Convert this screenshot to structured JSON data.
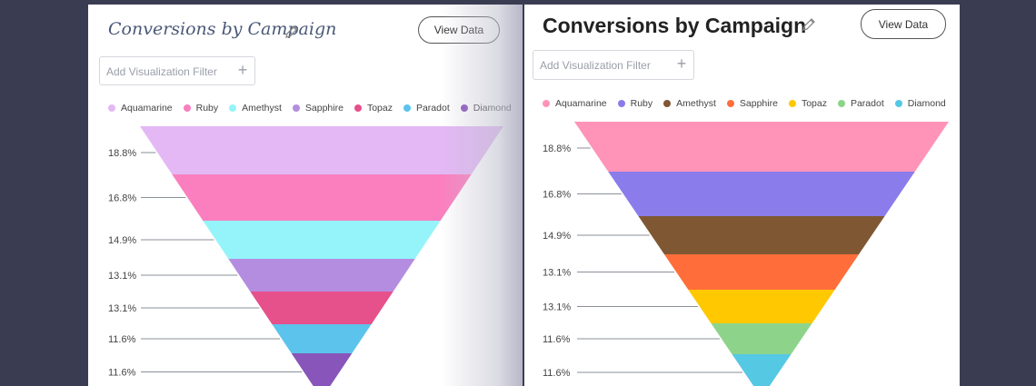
{
  "panels": [
    {
      "title": "Conversions by Campaign",
      "view_button": "View Data",
      "filter_placeholder": "Add Visualization Filter",
      "filter_add_icon": "plus-icon",
      "edit_icon": "pencil-icon",
      "legend": [
        {
          "name": "Aquamarine",
          "color": "#e4b8f5"
        },
        {
          "name": "Ruby",
          "color": "#fb7fbf"
        },
        {
          "name": "Amethyst",
          "color": "#95f4f9"
        },
        {
          "name": "Sapphire",
          "color": "#b48de0"
        },
        {
          "name": "Topaz",
          "color": "#e6508b"
        },
        {
          "name": "Paradot",
          "color": "#5cc4ec"
        },
        {
          "name": "Diamond",
          "color": "#8855bb"
        }
      ]
    },
    {
      "title": "Conversions by Campaign",
      "view_button": "View Data",
      "filter_placeholder": "Add Visualization Filter",
      "filter_add_icon": "plus-icon",
      "edit_icon": "pencil-icon",
      "legend": [
        {
          "name": "Aquamarine",
          "color": "#ff94b8"
        },
        {
          "name": "Ruby",
          "color": "#8a7ceb"
        },
        {
          "name": "Amethyst",
          "color": "#7f5733"
        },
        {
          "name": "Sapphire",
          "color": "#ff6e3a"
        },
        {
          "name": "Topaz",
          "color": "#ffc800"
        },
        {
          "name": "Paradot",
          "color": "#8dd48a"
        },
        {
          "name": "Diamond",
          "color": "#55c8e4"
        }
      ]
    }
  ],
  "chart_data": [
    {
      "type": "funnel",
      "title": "Conversions by Campaign",
      "categories": [
        "Aquamarine",
        "Ruby",
        "Amethyst",
        "Sapphire",
        "Topaz",
        "Paradot",
        "Diamond"
      ],
      "values": [
        18.8,
        16.8,
        14.9,
        13.1,
        13.1,
        11.6,
        11.6
      ],
      "labels": [
        "18.8%",
        "16.8%",
        "14.9%",
        "13.1%",
        "13.1%",
        "11.6%",
        "11.6%"
      ],
      "legend_position": "top-left"
    },
    {
      "type": "funnel",
      "title": "Conversions by Campaign",
      "categories": [
        "Aquamarine",
        "Ruby",
        "Amethyst",
        "Sapphire",
        "Topaz",
        "Paradot",
        "Diamond"
      ],
      "values": [
        18.8,
        16.8,
        14.9,
        13.1,
        13.1,
        11.6,
        11.6
      ],
      "labels": [
        "18.8%",
        "16.8%",
        "14.9%",
        "13.1%",
        "13.1%",
        "11.6%",
        "11.6%"
      ],
      "legend_position": "top-left"
    }
  ]
}
